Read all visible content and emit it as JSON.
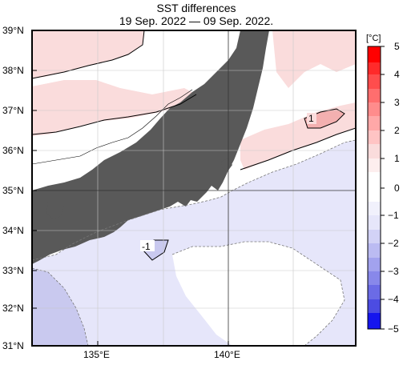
{
  "title": {
    "line1": "SST differences",
    "line2": "19 Sep. 2022 — 09 Sep. 2022."
  },
  "lat_labels": [
    "39°N",
    "38°N",
    "37°N",
    "36°N",
    "35°N",
    "34°N",
    "33°N",
    "32°N",
    "31°N"
  ],
  "lon_labels": [
    "135°E",
    "140°E"
  ],
  "map": {
    "lat_range": [
      31,
      39
    ],
    "lon_range": [
      134,
      144
    ],
    "land_color": "#595959",
    "contour_labels": [
      "1",
      "-1"
    ]
  },
  "colorbar": {
    "unit": "[°C]",
    "ticks": [
      "5",
      "4",
      "3",
      "2",
      "1",
      "0",
      "−1",
      "−2",
      "−3",
      "−4",
      "−5"
    ],
    "range": [
      -5,
      5
    ]
  }
}
